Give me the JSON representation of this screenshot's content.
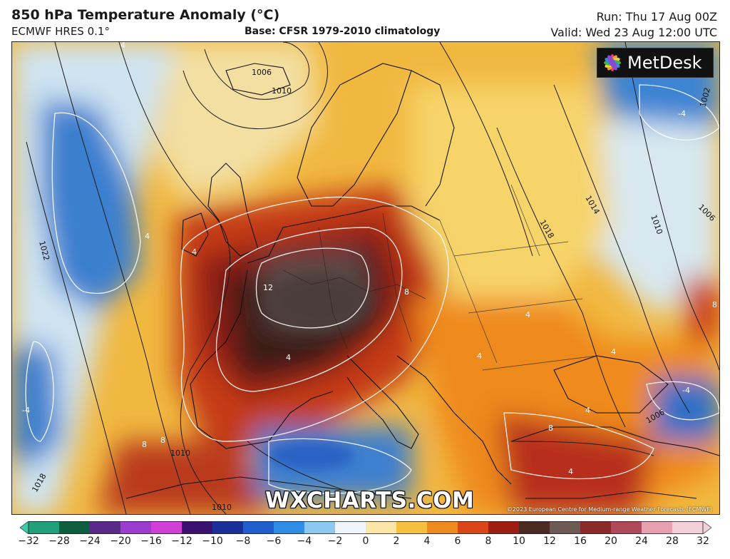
{
  "header": {
    "title": "850 hPa Temperature Anomaly (°C)",
    "model": "ECMWF HRES 0.1°",
    "base": "Base: CFSR 1979-2010 climatology",
    "run": "Run: Thu 17 Aug 00Z",
    "valid": "Valid: Wed 23 Aug 12:00 UTC"
  },
  "map": {
    "logo_text": "MetDesk",
    "watermark": "WXCHARTS.COM",
    "copyright": "©2023 European Centre for Medium-range Weather Forecasts (ECMWF)",
    "isobar_labels": [
      "1006",
      "1010",
      "1014",
      "1018",
      "1010",
      "1006",
      "1002",
      "1022",
      "1018",
      "1010",
      "1010",
      "1006"
    ],
    "anomaly_labels": [
      "4",
      "4",
      "4",
      "12",
      "8",
      "4",
      "4",
      "-4",
      "8",
      "8",
      "4",
      "8",
      "4",
      "4",
      "8",
      "-4",
      "-4",
      "4"
    ]
  },
  "colorbar": {
    "ticks": [
      "−32",
      "−28",
      "−24",
      "−20",
      "−16",
      "−12",
      "−10",
      "−8",
      "−6",
      "−4",
      "−2",
      "0",
      "2",
      "4",
      "6",
      "8",
      "10",
      "12",
      "16",
      "20",
      "24",
      "28",
      "32"
    ],
    "colors": [
      "#3ec9a8",
      "#1f9f7a",
      "#0d5f40",
      "#5a2a8a",
      "#9a3dd0",
      "#d23fd8",
      "#3a1070",
      "#1a2f9a",
      "#1f5fd0",
      "#2f8fe8",
      "#8dc8f0",
      "#eef6fb",
      "#fbe6a8",
      "#f5c040",
      "#ef8a1e",
      "#d9461a",
      "#9e1e14",
      "#4a2a22",
      "#6e5a55",
      "#8a2a2a",
      "#b04a5a",
      "#e8a0b0",
      "#f4d0da"
    ]
  }
}
